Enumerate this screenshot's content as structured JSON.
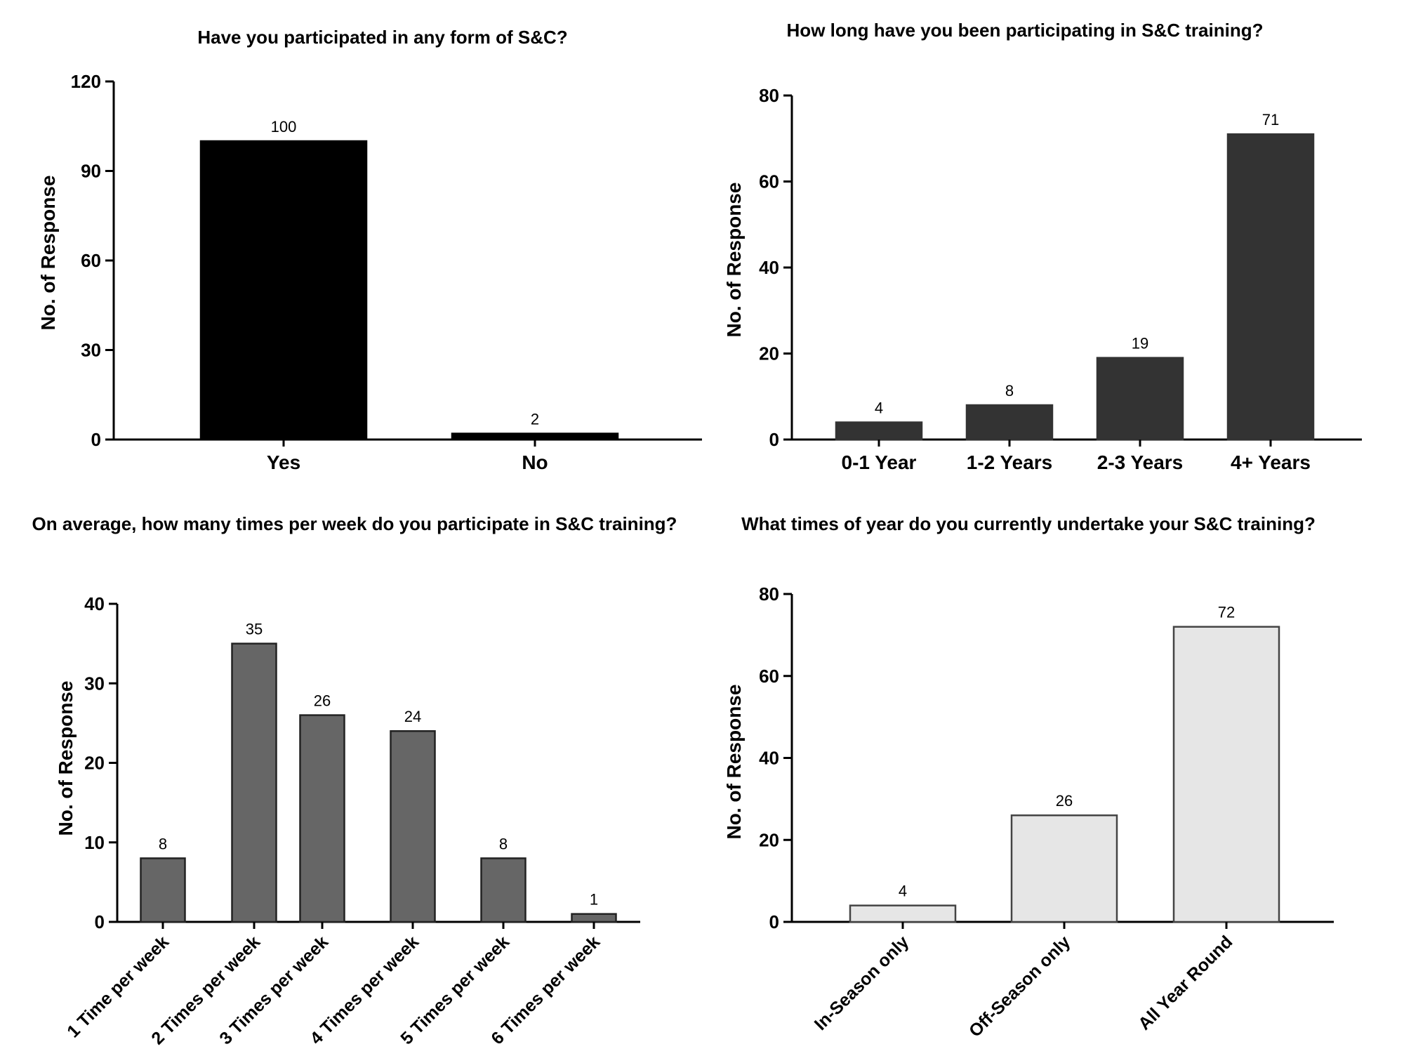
{
  "chart_data": [
    {
      "type": "bar",
      "title": "Have you participated in any form of S&C?",
      "ylabel": "No. of Response",
      "categories": [
        "Yes",
        "No"
      ],
      "values": [
        100,
        2
      ],
      "ylim": [
        0,
        120
      ],
      "yticks": [
        0,
        30,
        60,
        90,
        120
      ],
      "bar_color": "#000000",
      "bar_stroke": "#000000"
    },
    {
      "type": "bar",
      "title": "How long have you been participating in S&C training?",
      "ylabel": "No. of Response",
      "categories": [
        "0-1 Year",
        "1-2 Years",
        "2-3 Years",
        "4+ Years"
      ],
      "values": [
        4,
        8,
        19,
        71
      ],
      "ylim": [
        0,
        80
      ],
      "yticks": [
        0,
        20,
        40,
        60,
        80
      ],
      "bar_color": "#333333",
      "bar_stroke": "#333333"
    },
    {
      "type": "bar",
      "title": "On average, how many times per week do you participate in S&C training?",
      "ylabel": "No. of Response",
      "categories": [
        "1 Time per week",
        "2 Times per week",
        "3 Times per week",
        "4 Times per week",
        "5 Times per week",
        "6 Times per week"
      ],
      "values": [
        8,
        35,
        26,
        24,
        8,
        1
      ],
      "ylim": [
        0,
        40
      ],
      "yticks": [
        0,
        10,
        20,
        30,
        40
      ],
      "bar_color": "#666666",
      "bar_stroke": "#222222"
    },
    {
      "type": "bar",
      "title": "What times of year do you currently undertake your S&C training?",
      "ylabel": "No. of Response",
      "categories": [
        "In-Season only",
        "Off-Season only",
        "All Year Round"
      ],
      "values": [
        4,
        26,
        72
      ],
      "ylim": [
        0,
        80
      ],
      "yticks": [
        0,
        20,
        40,
        60,
        80
      ],
      "bar_color": "#e6e6e6",
      "bar_stroke": "#444444"
    }
  ]
}
